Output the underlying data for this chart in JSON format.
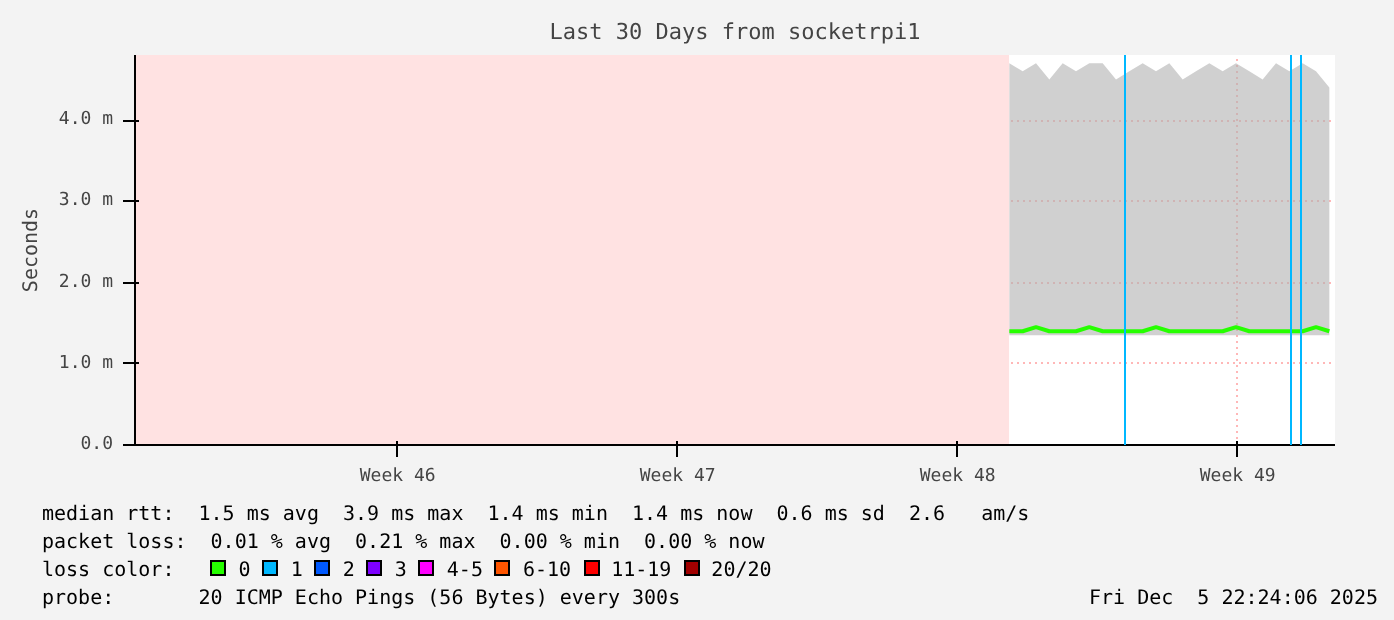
{
  "chart_data": {
    "type": "line",
    "title": "Last 30 Days from socketrpi1",
    "ylabel": "Seconds",
    "xlim": [
      "2025-11-05T22:24",
      "2025-12-05T22:24"
    ],
    "xticks": [
      {
        "value": "2025-11-12T12:00",
        "label": "Week 46"
      },
      {
        "value": "2025-11-19T12:00",
        "label": "Week 47"
      },
      {
        "value": "2025-11-26T12:00",
        "label": "Week 48"
      },
      {
        "value": "2025-12-03T12:00",
        "label": "Week 49"
      }
    ],
    "ylim": [
      0,
      4.8
    ],
    "yticks": [
      {
        "value": 0,
        "label": "0.0"
      },
      {
        "value": 1,
        "label": "1.0 m"
      },
      {
        "value": 2,
        "label": "2.0 m"
      },
      {
        "value": 3,
        "label": "3.0 m"
      },
      {
        "value": 4,
        "label": "4.0 m"
      }
    ],
    "grid": true,
    "legend": "bottom",
    "legend_title": "loss color:",
    "x": [
      "2025-11-27T19:00",
      "2025-11-28T03:00",
      "2025-11-28T11:00",
      "2025-11-28T19:00",
      "2025-11-29T03:00",
      "2025-11-29T11:00",
      "2025-11-29T19:00",
      "2025-11-30T03:00",
      "2025-11-30T11:00",
      "2025-11-30T19:00",
      "2025-12-01T03:00",
      "2025-12-01T11:00",
      "2025-12-01T19:00",
      "2025-12-02T03:00",
      "2025-12-02T11:00",
      "2025-12-02T19:00",
      "2025-12-03T03:00",
      "2025-12-03T11:00",
      "2025-12-03T19:00",
      "2025-12-04T03:00",
      "2025-12-04T11:00",
      "2025-12-04T19:00",
      "2025-12-05T03:00",
      "2025-12-05T11:00",
      "2025-12-05T19:00"
    ],
    "series": [
      {
        "color": "#26ff00",
        "values": [
          1.4,
          1.4,
          1.45,
          1.4,
          1.4,
          1.4,
          1.45,
          1.4,
          1.4,
          1.4,
          1.4,
          1.45,
          1.4,
          1.4,
          1.4,
          1.4,
          1.4,
          1.45,
          1.4,
          1.4,
          1.4,
          1.4,
          1.4,
          1.45,
          1.4
        ],
        "lower": [
          1.35,
          1.35,
          1.35,
          1.35,
          1.35,
          1.35,
          1.35,
          1.35,
          1.35,
          1.35,
          1.35,
          1.35,
          1.35,
          1.35,
          1.35,
          1.35,
          1.35,
          1.35,
          1.35,
          1.35,
          1.35,
          1.35,
          1.35,
          1.35,
          1.35
        ],
        "upper": [
          4.7,
          4.6,
          4.7,
          4.5,
          4.7,
          4.6,
          4.7,
          4.7,
          4.5,
          4.6,
          4.7,
          4.6,
          4.7,
          4.5,
          4.6,
          4.7,
          4.6,
          4.7,
          4.6,
          4.5,
          4.7,
          4.6,
          4.7,
          4.6,
          4.4
        ]
      },
      {
        "name": "0",
        "color": "#26ff00",
        "values": [
          null,
          null,
          null,
          null,
          null,
          null,
          null,
          null,
          null,
          null,
          null,
          null,
          null,
          null,
          null,
          null,
          null,
          null,
          null,
          null,
          null,
          null,
          null,
          null,
          null
        ]
      },
      {
        "name": "1",
        "color": "#00b8ff",
        "values": [
          null,
          null,
          null,
          null,
          null,
          null,
          null,
          null,
          null,
          null,
          null,
          null,
          null,
          null,
          null,
          null,
          null,
          null,
          null,
          null,
          null,
          null,
          null,
          null,
          null
        ]
      },
      {
        "name": "2",
        "color": "#0059ff",
        "values": [
          null,
          null,
          null,
          null,
          null,
          null,
          null,
          null,
          null,
          null,
          null,
          null,
          null,
          null,
          null,
          null,
          null,
          null,
          null,
          null,
          null,
          null,
          null,
          null,
          null
        ]
      },
      {
        "name": "3",
        "color": "#7e00ff",
        "values": [
          null,
          null,
          null,
          null,
          null,
          null,
          null,
          null,
          null,
          null,
          null,
          null,
          null,
          null,
          null,
          null,
          null,
          null,
          null,
          null,
          null,
          null,
          null,
          null,
          null
        ]
      },
      {
        "name": "4-5",
        "color": "#ff00ff",
        "values": [
          null,
          null,
          null,
          null,
          null,
          null,
          null,
          null,
          null,
          null,
          null,
          null,
          null,
          null,
          null,
          null,
          null,
          null,
          null,
          null,
          null,
          null,
          null,
          null,
          null
        ]
      },
      {
        "name": "6-10",
        "color": "#ff5500",
        "values": [
          null,
          null,
          null,
          null,
          null,
          null,
          null,
          null,
          null,
          null,
          null,
          null,
          null,
          null,
          null,
          null,
          null,
          null,
          null,
          null,
          null,
          null,
          null,
          null,
          null
        ]
      },
      {
        "name": "11-19",
        "color": "#ff0000",
        "values": [
          null,
          null,
          null,
          null,
          null,
          null,
          null,
          null,
          null,
          null,
          null,
          null,
          null,
          null,
          null,
          null,
          null,
          null,
          null,
          null,
          null,
          null,
          null,
          null,
          null
        ]
      },
      {
        "name": "20/20",
        "color": "#a10000",
        "values": [
          null,
          null,
          null,
          null,
          null,
          null,
          null,
          null,
          null,
          null,
          null,
          null,
          null,
          null,
          null,
          null,
          null,
          null,
          null,
          null,
          null,
          null,
          null,
          null,
          null
        ]
      }
    ],
    "bands": [
      {
        "axis": "x",
        "from": "2025-11-05T22:24",
        "to": "2025-11-27T18:50",
        "color": "#ffe2e2"
      }
    ],
    "ref_lines": [
      {
        "axis": "x",
        "value": "2025-11-30T16:24",
        "color": "#00b8ff"
      },
      {
        "axis": "x",
        "value": "2025-12-04T20:00",
        "color": "#00b8ff"
      },
      {
        "axis": "x",
        "value": "2025-12-05T02:00",
        "color": "#00b8ff"
      }
    ],
    "annotations": [
      "median rtt:  1.5 ms avg  3.9 ms max  1.4 ms min  1.4 ms now  0.6 ms sd  2.6   am/s",
      "packet loss:  0.01 % avg  0.21 % max  0.00 % min  0.00 % now",
      "probe:       20 ICMP Echo Pings (56 Bytes) every 300s",
      "Fri Dec  5 22:24:06 2025"
    ]
  }
}
